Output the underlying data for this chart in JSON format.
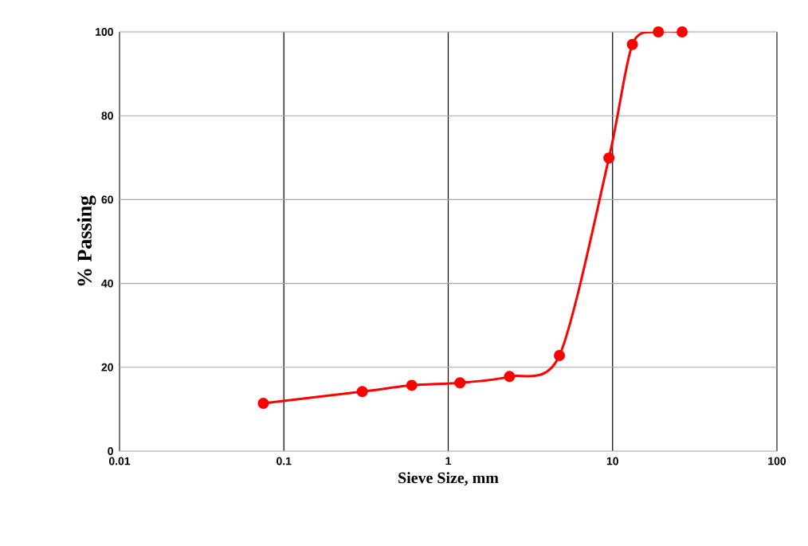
{
  "chart_data": {
    "type": "line",
    "xlabel": "Sieve Size, mm",
    "ylabel": "% Passing",
    "x": [
      0.075,
      0.3,
      0.6,
      1.18,
      2.36,
      4.75,
      9.5,
      13.2,
      19,
      26.5
    ],
    "series": [
      {
        "color": "#ff0000",
        "values": [
          11.4,
          14.2,
          15.7,
          16.3,
          17.8,
          22.8,
          69.9,
          97.0,
          100,
          100
        ]
      }
    ],
    "xlim": [
      0.01,
      100
    ],
    "ylim": [
      0,
      100
    ],
    "xticks": [
      0.01,
      0.1,
      1,
      10,
      100
    ],
    "yticks": [
      0,
      20,
      40,
      60,
      80,
      100
    ],
    "log": "x",
    "grid": true,
    "marker": "circle",
    "line_style": "solid"
  }
}
